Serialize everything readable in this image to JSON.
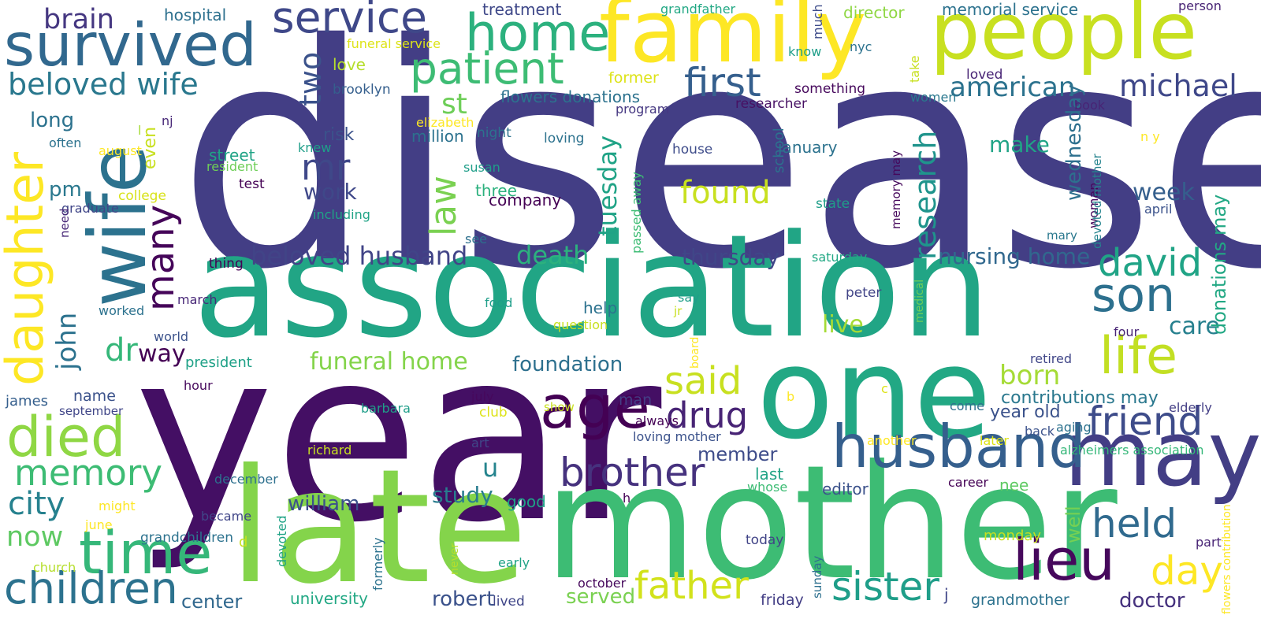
{
  "words": [
    {
      "text": "disease",
      "color": "#433e85"
    },
    {
      "text": "association",
      "color": "#21a585"
    },
    {
      "text": "year",
      "color": "#440f64"
    },
    {
      "text": "mother",
      "color": "#3dbc74"
    },
    {
      "text": "late",
      "color": "#84d44b"
    },
    {
      "text": "one",
      "color": "#22a884"
    },
    {
      "text": "family",
      "color": "#fde725"
    },
    {
      "text": "people",
      "color": "#c8e020"
    },
    {
      "text": "may",
      "color": "#433e85"
    },
    {
      "text": "wife",
      "color": "#2c728e"
    },
    {
      "text": "survived",
      "color": "#31688e"
    },
    {
      "text": "husband",
      "color": "#355f8d"
    },
    {
      "text": "time",
      "color": "#35b779"
    },
    {
      "text": "home",
      "color": "#2cb17e"
    },
    {
      "text": "patient",
      "color": "#3dbc74"
    },
    {
      "text": "service",
      "color": "#3f4889"
    },
    {
      "text": "daughter",
      "color": "#fde725"
    },
    {
      "text": "died",
      "color": "#8fd744"
    },
    {
      "text": "memory",
      "color": "#3dbc74"
    },
    {
      "text": "children",
      "color": "#2c728e"
    },
    {
      "text": "age",
      "color": "#440154"
    },
    {
      "text": "brother",
      "color": "#46327e"
    },
    {
      "text": "father",
      "color": "#d2e21b"
    },
    {
      "text": "sister",
      "color": "#1f9e89"
    },
    {
      "text": "lieu",
      "color": "#46085c"
    },
    {
      "text": "life",
      "color": "#c2df23"
    },
    {
      "text": "son",
      "color": "#2d708e"
    },
    {
      "text": "friend",
      "color": "#3e4c8a"
    },
    {
      "text": "held",
      "color": "#306a8e"
    },
    {
      "text": "day",
      "color": "#fde725"
    },
    {
      "text": "david",
      "color": "#20a486"
    },
    {
      "text": "first",
      "color": "#355f8d"
    },
    {
      "text": "michael",
      "color": "#3f4889"
    },
    {
      "text": "american",
      "color": "#2c728e"
    },
    {
      "text": "beloved wife",
      "color": "#2a788e"
    },
    {
      "text": "beloved husband",
      "color": "#414487"
    },
    {
      "text": "funeral home",
      "color": "#84d44b"
    },
    {
      "text": "death",
      "color": "#2cb17e"
    },
    {
      "text": "said",
      "color": "#c8e020"
    },
    {
      "text": "drug",
      "color": "#482475"
    },
    {
      "text": "found",
      "color": "#c8e020"
    },
    {
      "text": "many",
      "color": "#450559"
    },
    {
      "text": "law",
      "color": "#7ad151"
    },
    {
      "text": "research",
      "color": "#1f948c"
    },
    {
      "text": "mr",
      "color": "#3f4889"
    },
    {
      "text": "two",
      "color": "#3b528b"
    },
    {
      "text": "st",
      "color": "#6ece58"
    },
    {
      "text": "brain",
      "color": "#453781"
    },
    {
      "text": "long",
      "color": "#2c728e"
    },
    {
      "text": "dr",
      "color": "#35b779"
    },
    {
      "text": "way",
      "color": "#440154"
    },
    {
      "text": "john",
      "color": "#2c728e"
    },
    {
      "text": "city",
      "color": "#26818e"
    },
    {
      "text": "now",
      "color": "#5ec962"
    },
    {
      "text": "pm",
      "color": "#2a788e"
    },
    {
      "text": "even",
      "color": "#c8e020"
    },
    {
      "text": "work",
      "color": "#3f4889"
    },
    {
      "text": "tuesday",
      "color": "#20a386"
    },
    {
      "text": "make",
      "color": "#20a486"
    },
    {
      "text": "week",
      "color": "#355f8d"
    },
    {
      "text": "nursing home",
      "color": "#31688e"
    },
    {
      "text": "thursday",
      "color": "#404688"
    },
    {
      "text": "born",
      "color": "#a5db36"
    },
    {
      "text": "care",
      "color": "#27808e"
    },
    {
      "text": "live",
      "color": "#a5db36"
    },
    {
      "text": "study",
      "color": "#287c8e"
    },
    {
      "text": "foundation",
      "color": "#2d708e"
    },
    {
      "text": "william",
      "color": "#3b528b"
    },
    {
      "text": "robert",
      "color": "#3b528b"
    },
    {
      "text": "center",
      "color": "#31688e"
    },
    {
      "text": "served",
      "color": "#7ad151"
    },
    {
      "text": "doctor",
      "color": "#46327e"
    },
    {
      "text": "wednesday",
      "color": "#2d708e"
    },
    {
      "text": "donations may",
      "color": "#22a884"
    },
    {
      "text": "contributions may",
      "color": "#2a788e"
    },
    {
      "text": "year old",
      "color": "#3b528b"
    },
    {
      "text": "member",
      "color": "#3e4c8a"
    },
    {
      "text": "well",
      "color": "#75d054"
    },
    {
      "text": "u",
      "color": "#25848e"
    },
    {
      "text": "hospital",
      "color": "#2d708e"
    },
    {
      "text": "treatment",
      "color": "#3f4889"
    },
    {
      "text": "grandfather",
      "color": "#22a884"
    },
    {
      "text": "director",
      "color": "#8fd744"
    },
    {
      "text": "memorial service",
      "color": "#2c728e"
    },
    {
      "text": "person",
      "color": "#482475"
    },
    {
      "text": "funeral service",
      "color": "#dde318"
    },
    {
      "text": "much",
      "color": "#3e4c8a"
    },
    {
      "text": "nyc",
      "color": "#2c728e"
    },
    {
      "text": "know",
      "color": "#1f9e89"
    },
    {
      "text": "take",
      "color": "#c8e020"
    },
    {
      "text": "love",
      "color": "#b5de2b"
    },
    {
      "text": "brooklyn",
      "color": "#355f8d"
    },
    {
      "text": "flowers donations",
      "color": "#2c728e"
    },
    {
      "text": "program",
      "color": "#453781"
    },
    {
      "text": "something",
      "color": "#46085c"
    },
    {
      "text": "researcher",
      "color": "#471164"
    },
    {
      "text": "women",
      "color": "#2a788e"
    },
    {
      "text": "loved",
      "color": "#482475"
    },
    {
      "text": "book",
      "color": "#482475"
    },
    {
      "text": "former",
      "color": "#dde318"
    },
    {
      "text": "elizabeth",
      "color": "#fde725"
    },
    {
      "text": "million",
      "color": "#2c728e"
    },
    {
      "text": "loving",
      "color": "#2c728e"
    },
    {
      "text": "risk",
      "color": "#3b528b"
    },
    {
      "text": "nj",
      "color": "#482878"
    },
    {
      "text": "l",
      "color": "#a5db36"
    },
    {
      "text": "often",
      "color": "#2c728e"
    },
    {
      "text": "august",
      "color": "#fde725"
    },
    {
      "text": "street",
      "color": "#20a386"
    },
    {
      "text": "resident",
      "color": "#6ece58"
    },
    {
      "text": "knew",
      "color": "#1f9e89"
    },
    {
      "text": "night",
      "color": "#2c728e"
    },
    {
      "text": "susan",
      "color": "#1f9e89"
    },
    {
      "text": "school",
      "color": "#2c728e"
    },
    {
      "text": "january",
      "color": "#2c728e"
    },
    {
      "text": "house",
      "color": "#3e4c8a"
    },
    {
      "text": "n y",
      "color": "#fde725"
    },
    {
      "text": "april",
      "color": "#3b528b"
    },
    {
      "text": "test",
      "color": "#440154"
    },
    {
      "text": "college",
      "color": "#d8e219"
    },
    {
      "text": "graduate",
      "color": "#404688"
    },
    {
      "text": "need",
      "color": "#482878"
    },
    {
      "text": "three",
      "color": "#2cb17e"
    },
    {
      "text": "company",
      "color": "#440154"
    },
    {
      "text": "including",
      "color": "#20a386"
    },
    {
      "text": "see",
      "color": "#2d708e"
    },
    {
      "text": "passed away",
      "color": "#3dbc74"
    },
    {
      "text": "state",
      "color": "#1f9e89"
    },
    {
      "text": "woman",
      "color": "#46085c"
    },
    {
      "text": "devoted mother",
      "color": "#25848e"
    },
    {
      "text": "memory may",
      "color": "#46085c"
    },
    {
      "text": "mary",
      "color": "#2a788e"
    },
    {
      "text": "thing",
      "color": "#440154"
    },
    {
      "text": "saturday",
      "color": "#22a884"
    },
    {
      "text": "march",
      "color": "#482878"
    },
    {
      "text": "food",
      "color": "#1f9e89"
    },
    {
      "text": "medical",
      "color": "#6ece58"
    },
    {
      "text": "say",
      "color": "#1f9e89"
    },
    {
      "text": "peter",
      "color": "#414487"
    },
    {
      "text": "help",
      "color": "#2c728e"
    },
    {
      "text": "worked",
      "color": "#2c728e"
    },
    {
      "text": "world",
      "color": "#3b528b"
    },
    {
      "text": "question",
      "color": "#c8e020"
    },
    {
      "text": "jr",
      "color": "#c8e020"
    },
    {
      "text": "board",
      "color": "#fde725"
    },
    {
      "text": "four",
      "color": "#482475"
    },
    {
      "text": "president",
      "color": "#1fa187"
    },
    {
      "text": "hour",
      "color": "#46085c"
    },
    {
      "text": "name",
      "color": "#3b528b"
    },
    {
      "text": "man",
      "color": "#433e85"
    },
    {
      "text": "retired",
      "color": "#404688"
    },
    {
      "text": "james",
      "color": "#355f8d"
    },
    {
      "text": "september",
      "color": "#404688"
    },
    {
      "text": "july",
      "color": "#46085c"
    },
    {
      "text": "barbara",
      "color": "#1f9e89"
    },
    {
      "text": "show",
      "color": "#c8e020"
    },
    {
      "text": "b",
      "color": "#fde725"
    },
    {
      "text": "c",
      "color": "#dde318"
    },
    {
      "text": "always",
      "color": "#440154"
    },
    {
      "text": "club",
      "color": "#dde318"
    },
    {
      "text": "come",
      "color": "#2d708e"
    },
    {
      "text": "elderly",
      "color": "#433e85"
    },
    {
      "text": "back",
      "color": "#3b528b"
    },
    {
      "text": "aging",
      "color": "#2c728e"
    },
    {
      "text": "loving mother",
      "color": "#3b528b"
    },
    {
      "text": "another",
      "color": "#fde725"
    },
    {
      "text": "later",
      "color": "#dde318"
    },
    {
      "text": "alzheimers association",
      "color": "#35b779"
    },
    {
      "text": "art",
      "color": "#404688"
    },
    {
      "text": "richard",
      "color": "#c8e020"
    },
    {
      "text": "december",
      "color": "#2d708e"
    },
    {
      "text": "might",
      "color": "#fde725"
    },
    {
      "text": "last",
      "color": "#20a386"
    },
    {
      "text": "whose",
      "color": "#3dbc74"
    },
    {
      "text": "editor",
      "color": "#3b528b"
    },
    {
      "text": "nee",
      "color": "#5ec962"
    },
    {
      "text": "career",
      "color": "#440154"
    },
    {
      "text": "good",
      "color": "#1fa187"
    },
    {
      "text": "h",
      "color": "#440154"
    },
    {
      "text": "june",
      "color": "#fde725"
    },
    {
      "text": "became",
      "color": "#404688"
    },
    {
      "text": "grandchildren",
      "color": "#2c728e"
    },
    {
      "text": "d",
      "color": "#c8e020"
    },
    {
      "text": "devoted",
      "color": "#20a386"
    },
    {
      "text": "never",
      "color": "#b5de2b"
    },
    {
      "text": "formerly",
      "color": "#2c728e"
    },
    {
      "text": "early",
      "color": "#20a386"
    },
    {
      "text": "today",
      "color": "#414487"
    },
    {
      "text": "sunday",
      "color": "#2d708e"
    },
    {
      "text": "monday",
      "color": "#c8e020"
    },
    {
      "text": "part",
      "color": "#482475"
    },
    {
      "text": "flowers contribution",
      "color": "#fde725"
    },
    {
      "text": "church",
      "color": "#b5de2b"
    },
    {
      "text": "university",
      "color": "#22a884"
    },
    {
      "text": "lived",
      "color": "#404688"
    },
    {
      "text": "october",
      "color": "#46085c"
    },
    {
      "text": "friday",
      "color": "#433e85"
    },
    {
      "text": "j",
      "color": "#404688"
    },
    {
      "text": "grandmother",
      "color": "#2c728e"
    }
  ]
}
